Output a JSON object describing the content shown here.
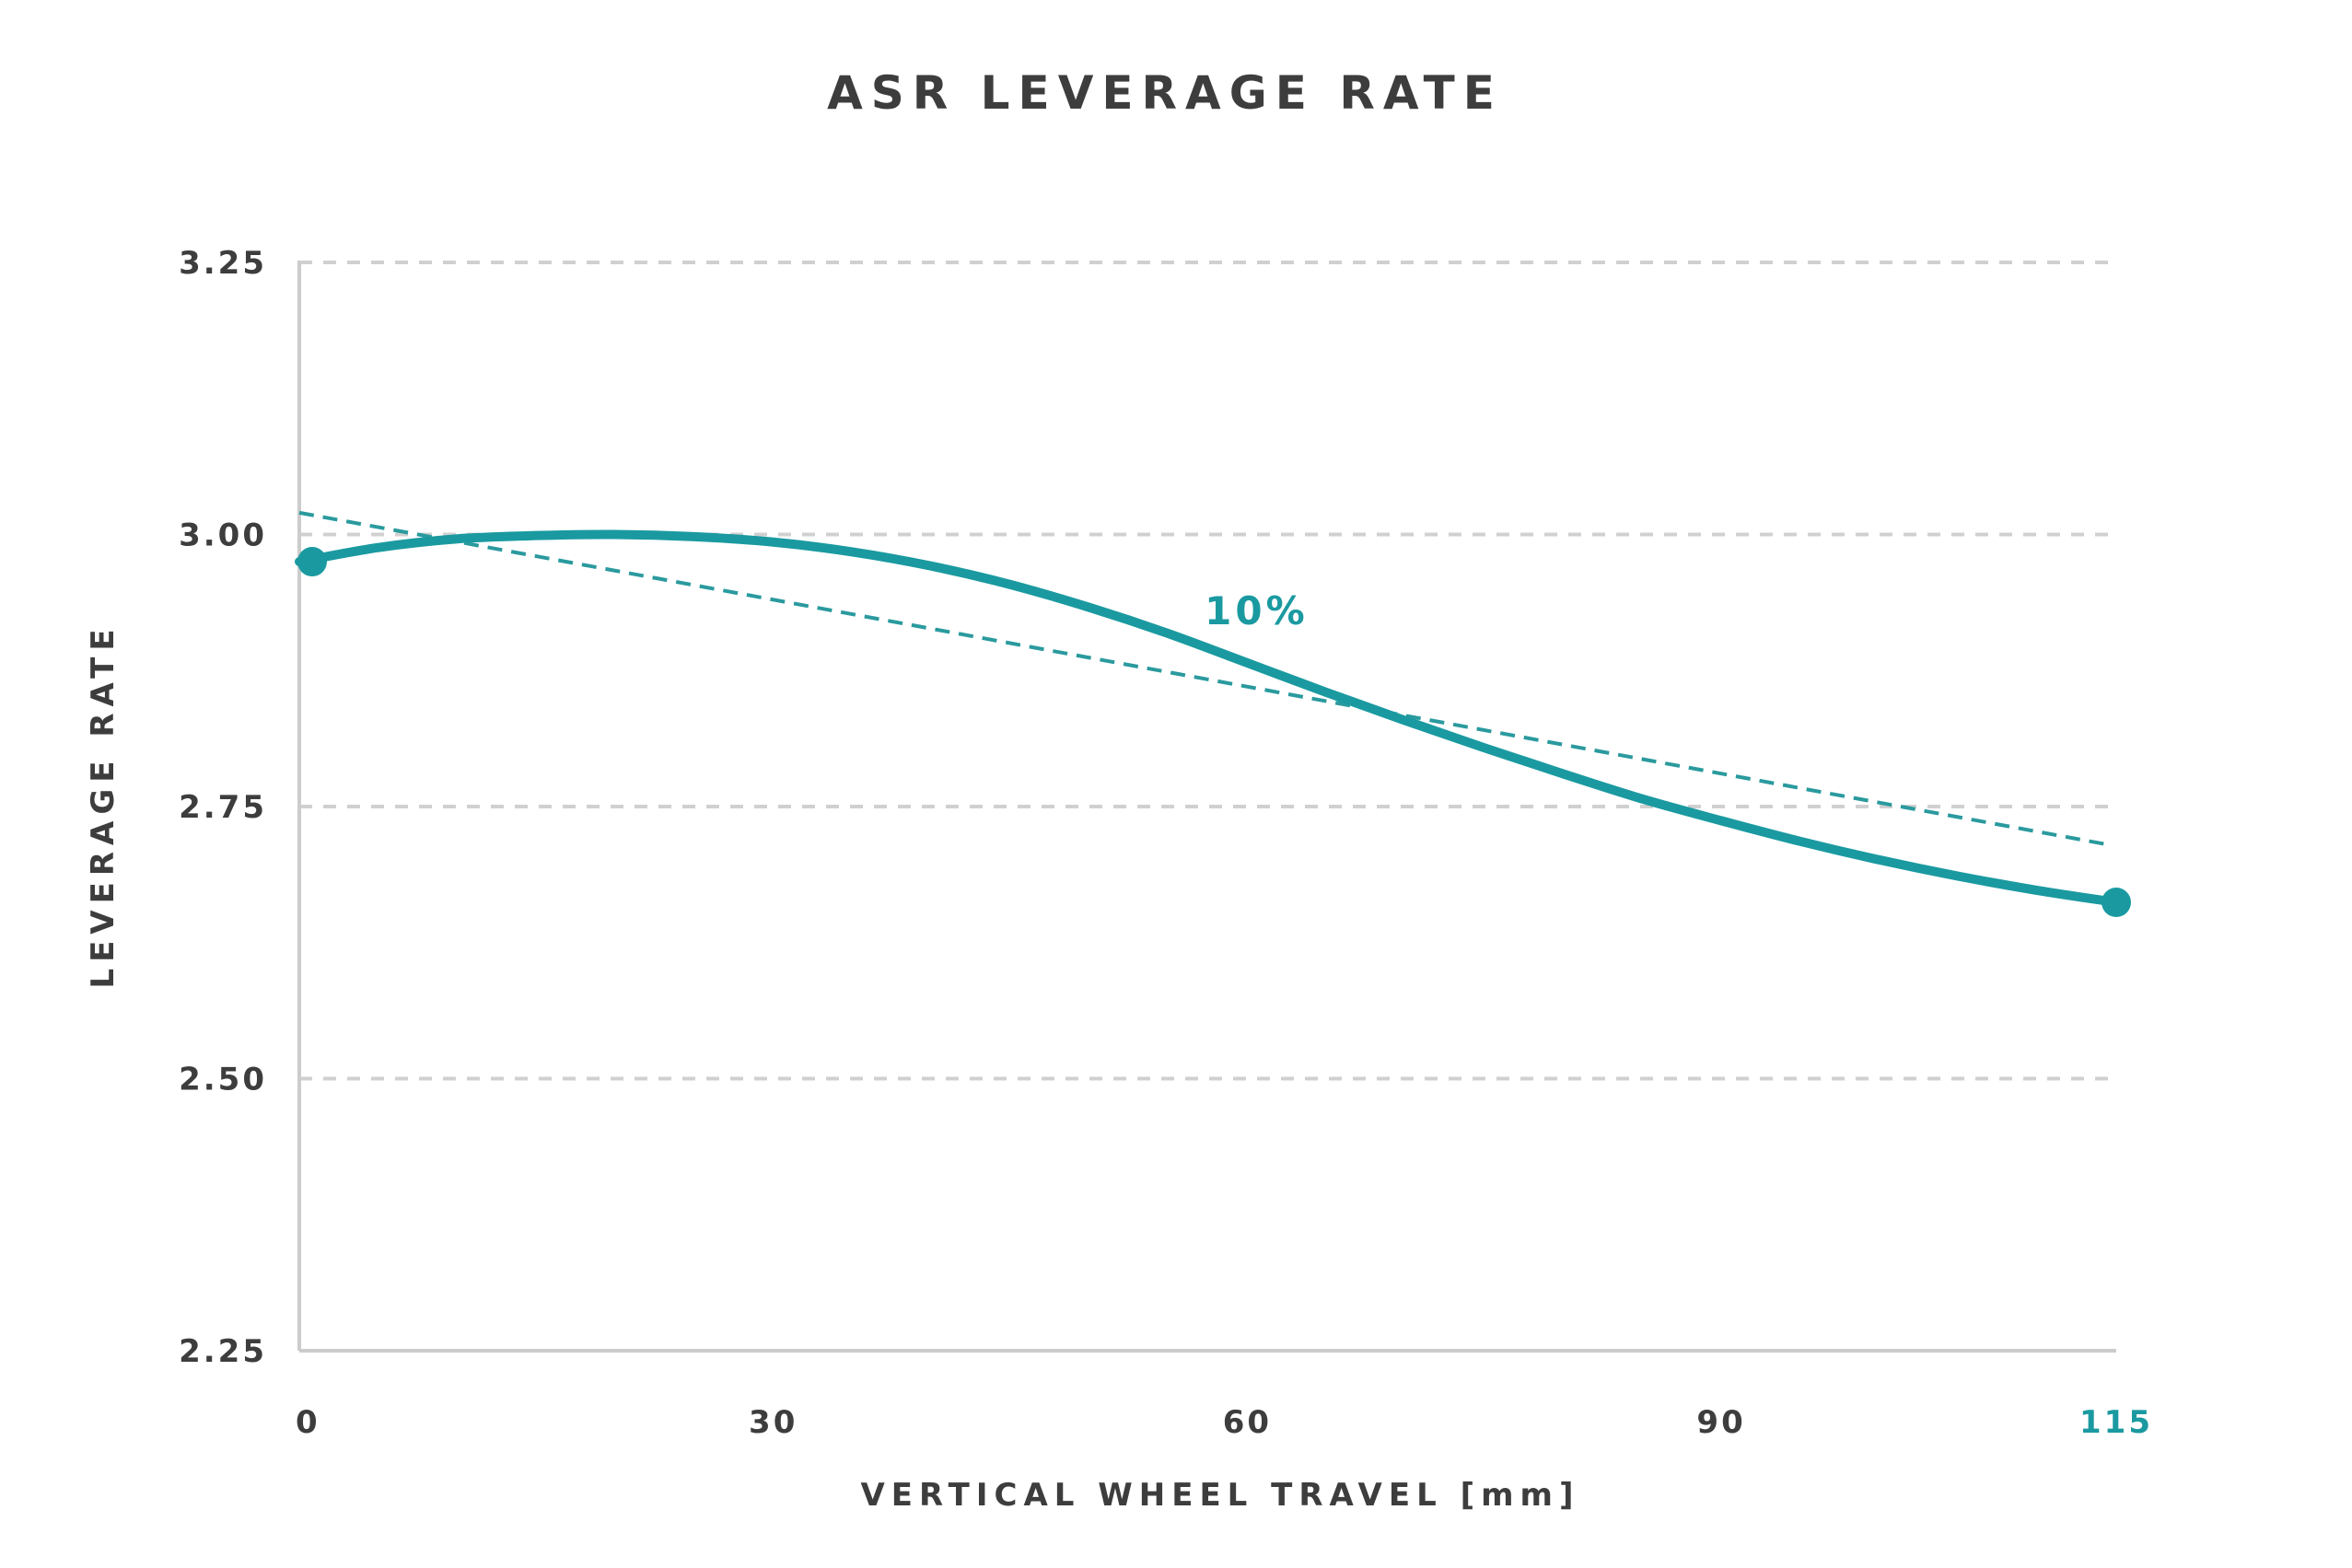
{
  "chart_data": {
    "type": "line",
    "title": "ASR LEVERAGE RATE",
    "xlabel": "VERTICAL WHEEL TRAVEL [mm]",
    "ylabel": "LEVERAGE RATE",
    "xlim": [
      0,
      115
    ],
    "ylim": [
      2.25,
      3.25
    ],
    "x_ticks": [
      {
        "value": 0,
        "label": "0"
      },
      {
        "value": 30,
        "label": "30"
      },
      {
        "value": 60,
        "label": "60"
      },
      {
        "value": 90,
        "label": "90"
      },
      {
        "value": 115,
        "label": "115",
        "highlight": true
      }
    ],
    "y_ticks": [
      {
        "value": 3.25,
        "label": "3.25"
      },
      {
        "value": 3.0,
        "label": "3.00"
      },
      {
        "value": 2.75,
        "label": "2.75"
      },
      {
        "value": 2.5,
        "label": "2.50"
      },
      {
        "value": 2.25,
        "label": "2.25"
      }
    ],
    "grid": true,
    "series": [
      {
        "x": [
          0,
          5,
          10,
          15,
          20,
          25,
          30,
          35,
          40,
          45,
          50,
          55,
          60,
          65,
          70,
          75,
          80,
          85,
          90,
          95,
          100,
          105,
          110,
          115
        ],
        "y": [
          2.975,
          2.988,
          2.996,
          2.999,
          3.0,
          2.998,
          2.993,
          2.984,
          2.971,
          2.954,
          2.933,
          2.909,
          2.882,
          2.855,
          2.829,
          2.804,
          2.78,
          2.757,
          2.737,
          2.718,
          2.701,
          2.686,
          2.673,
          2.662
        ],
        "color": "#1a9aa0",
        "endpoints": true
      }
    ],
    "trend_line": {
      "x": [
        0,
        114.5
      ],
      "y": [
        3.02,
        2.715
      ],
      "color": "#2a9a9e"
    },
    "annotations": [
      {
        "text": "10%",
        "x": 60,
        "y": 2.93
      }
    ],
    "colors": {
      "accent": "#1a9aa0",
      "grid": "#d0d0d0",
      "axis": "#cccccc",
      "text": "#3d3d3d"
    }
  }
}
